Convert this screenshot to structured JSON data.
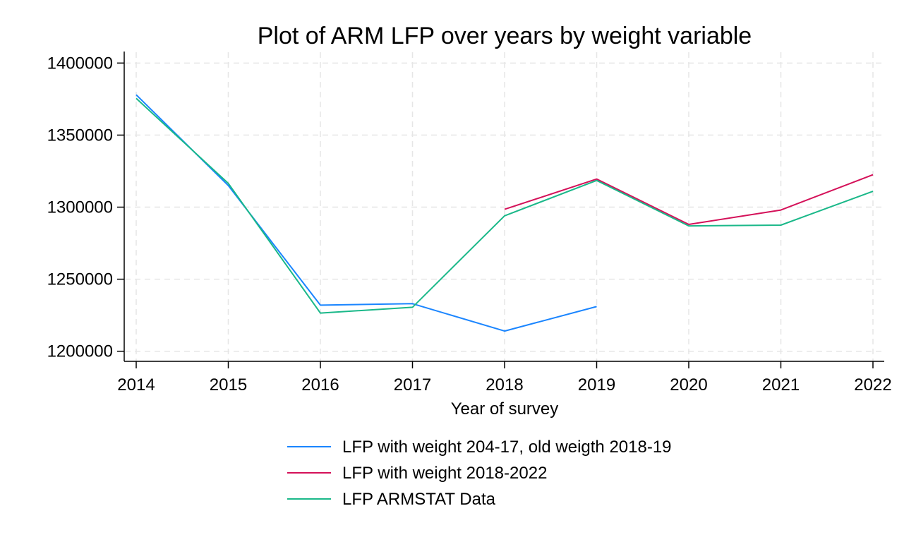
{
  "chart_data": {
    "type": "line",
    "title": "Plot of ARM LFP over years by weight variable",
    "xlabel": "Year of survey",
    "ylabel": "",
    "x": [
      2014,
      2015,
      2016,
      2017,
      2018,
      2019,
      2020,
      2021,
      2022
    ],
    "x_ticks": [
      "2014",
      "2015",
      "2016",
      "2017",
      "2018",
      "2019",
      "2020",
      "2021",
      "2022"
    ],
    "y_ticks": [
      "1400000",
      "1350000",
      "1300000",
      "1250000",
      "1200000"
    ],
    "y_tick_values": [
      1400000,
      1350000,
      1300000,
      1250000,
      1200000
    ],
    "xlim": [
      2014,
      2022
    ],
    "ylim": [
      1193000,
      1408000
    ],
    "grid": true,
    "legend_position": "bottom",
    "series": [
      {
        "name": "LFP with weight 204-17, old weigth 2018-19",
        "color": "#1a85ff",
        "values": [
          1378000,
          1315000,
          1232000,
          1233000,
          1214000,
          1231000,
          null,
          null,
          null
        ]
      },
      {
        "name": "LFP with weight 2018-2022",
        "color": "#d41159",
        "values": [
          null,
          null,
          null,
          null,
          1298500,
          1319500,
          1288000,
          1298000,
          1322500
        ]
      },
      {
        "name": "LFP ARMSTAT Data",
        "color": "#1ab889",
        "values": [
          1375500,
          1316500,
          1226500,
          1230500,
          1294000,
          1318500,
          1287000,
          1287500,
          1311000
        ]
      }
    ]
  }
}
